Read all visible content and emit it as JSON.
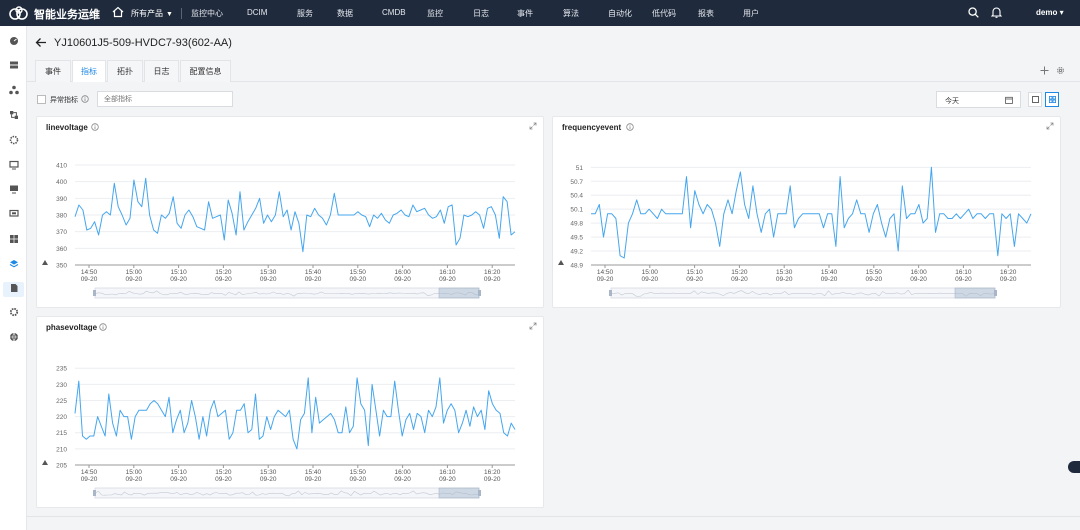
{
  "app": {
    "brand": "智能业务运维",
    "products_label": "所有产品",
    "nav": [
      "监控中心",
      "DCIM",
      "服务",
      "数据",
      "CMDB",
      "监控",
      "日志",
      "事件",
      "算法",
      "自动化",
      "低代码",
      "报表",
      "用户"
    ],
    "user": "demo"
  },
  "sidebar": {
    "icons": [
      "dashboard-icon",
      "server-icon",
      "cluster-icon",
      "network-icon",
      "gear-nodes-icon",
      "monitor-icon",
      "display-icon",
      "screen-icon",
      "grid-icon",
      "layers-icon",
      "document-icon",
      "settings-icon",
      "globe-icon"
    ]
  },
  "page": {
    "title": "YJ10601J5-509-HVDC7-93(602-AA)",
    "tabs": [
      "事件",
      "指标",
      "拓扑",
      "日志",
      "配置信息"
    ],
    "active_tab": 1
  },
  "filters": {
    "abnormal_label": "异常指标",
    "search_placeholder": "全部指标",
    "date_value": "今天"
  },
  "colors": {
    "topbar": "#1f2a3c",
    "accent": "#1e88e5",
    "series": "#45a6ee"
  },
  "x_ticks": [
    {
      "time": "14:50",
      "date": "09-20"
    },
    {
      "time": "15:00",
      "date": "09-20"
    },
    {
      "time": "15:10",
      "date": "09-20"
    },
    {
      "time": "15:20",
      "date": "09-20"
    },
    {
      "time": "15:30",
      "date": "09-20"
    },
    {
      "time": "15:40",
      "date": "09-20"
    },
    {
      "time": "15:50",
      "date": "09-20"
    },
    {
      "time": "16:00",
      "date": "09-20"
    },
    {
      "time": "16:10",
      "date": "09-20"
    },
    {
      "time": "16:20",
      "date": "09-20"
    }
  ],
  "chart_data": [
    {
      "type": "line",
      "title": "linevoltage",
      "ylim": [
        350,
        410
      ],
      "y_ticks": [
        "410",
        "400",
        "390",
        "380",
        "370",
        "360",
        "350"
      ],
      "x_range": [
        "14:47",
        "16:27"
      ],
      "series": [
        {
          "values": [
            379,
            386,
            383,
            371,
            372,
            376,
            368,
            380,
            382,
            380,
            399,
            385,
            380,
            374,
            378,
            401,
            388,
            385,
            402,
            380,
            371,
            369,
            380,
            378,
            381,
            391,
            375,
            372,
            380,
            383,
            379,
            373,
            372,
            371,
            388,
            378,
            379,
            380,
            365,
            389,
            381,
            368,
            394,
            371,
            376,
            380,
            384,
            390,
            375,
            380,
            376,
            380,
            394,
            379,
            383,
            371,
            382,
            375,
            358,
            380,
            379,
            384,
            380,
            378,
            374,
            380,
            393,
            380,
            380,
            380,
            380,
            380,
            382,
            380,
            379,
            373,
            380,
            378,
            381,
            377,
            375,
            380,
            381,
            383,
            380,
            379,
            386,
            382,
            383,
            384,
            380,
            378,
            379,
            383,
            375,
            385,
            386,
            362,
            366,
            380,
            379,
            380,
            382,
            380,
            372,
            384,
            385,
            380,
            366,
            391,
            388,
            368,
            370
          ]
        }
      ],
      "grid": true
    },
    {
      "type": "line",
      "title": "frequencyevent",
      "ylim": [
        48.9,
        51.05
      ],
      "y_ticks": [
        "51",
        "50.7",
        "50.4",
        "50.1",
        "49.8",
        "49.5",
        "49.2",
        "48.9"
      ],
      "x_range": [
        "14:47",
        "16:27"
      ],
      "series": [
        {
          "values": [
            50.0,
            50.0,
            50.2,
            49.5,
            50.0,
            50.0,
            49.9,
            49.1,
            49.05,
            49.8,
            50.0,
            50.3,
            50.0,
            50.0,
            50.1,
            50.0,
            49.9,
            50.1,
            50.0,
            50.0,
            50.0,
            50.0,
            50.0,
            50.8,
            49.7,
            50.5,
            50.2,
            50.0,
            50.2,
            50.1,
            49.8,
            49.3,
            50.0,
            50.3,
            50.0,
            50.5,
            50.9,
            50.2,
            49.9,
            50.6,
            50.0,
            49.6,
            50.0,
            50.1,
            49.5,
            50.0,
            50.0,
            50.0,
            50.6,
            49.7,
            49.9,
            50.0,
            50.0,
            50.0,
            50.0,
            50.0,
            49.7,
            50.0,
            50.0,
            49.3,
            50.8,
            49.7,
            49.9,
            50.0,
            50.3,
            50.0,
            50.0,
            49.6,
            50.0,
            50.2,
            49.8,
            49.5,
            49.9,
            50.0,
            49.2,
            50.6,
            49.9,
            50.0,
            50.0,
            50.2,
            49.8,
            49.9,
            51.0,
            49.6,
            50.0,
            50.0,
            49.9,
            49.9,
            50.0,
            49.9,
            50.0,
            50.1,
            49.9,
            50.0,
            50.0,
            49.9,
            50.0,
            50.0,
            49.1,
            50.0,
            49.9,
            50.0,
            49.3,
            50.0,
            49.9,
            49.8,
            50.0
          ]
        }
      ],
      "grid": true
    },
    {
      "type": "line",
      "title": "phasevoltage",
      "ylim": [
        205,
        236
      ],
      "y_ticks": [
        "235",
        "230",
        "225",
        "220",
        "215",
        "210",
        "205"
      ],
      "x_range": [
        "14:47",
        "16:27"
      ],
      "series": [
        {
          "values": [
            221,
            231,
            214,
            213,
            214,
            214,
            220,
            217,
            214,
            227,
            218,
            214,
            222,
            220,
            220,
            213,
            220,
            222,
            222,
            222,
            224,
            225,
            224,
            222,
            220,
            226,
            215,
            219,
            222,
            215,
            218,
            225,
            220,
            213,
            220,
            214,
            222,
            225,
            220,
            221,
            222,
            213,
            215,
            222,
            222,
            224,
            215,
            216,
            227,
            213,
            214,
            220,
            216,
            220,
            222,
            221,
            220,
            222,
            213,
            210,
            219,
            221,
            232,
            215,
            226,
            218,
            219,
            220,
            221,
            219,
            215,
            215,
            223,
            215,
            217,
            232,
            224,
            222,
            211,
            230,
            222,
            214,
            222,
            220,
            220,
            231,
            222,
            214,
            219,
            221,
            216,
            221,
            220,
            215,
            222,
            220,
            223,
            232,
            218,
            222,
            224,
            222,
            215,
            218,
            222,
            217,
            223,
            220,
            222,
            216,
            228,
            224,
            222,
            221,
            215,
            214,
            218,
            216
          ]
        }
      ],
      "grid": true
    }
  ]
}
